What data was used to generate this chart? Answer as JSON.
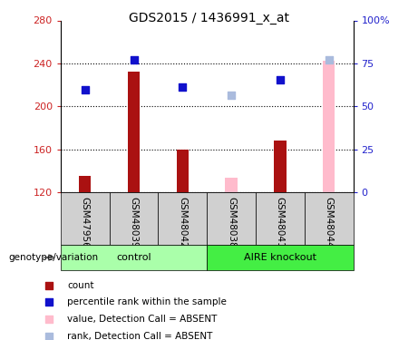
{
  "title": "GDS2015 / 1436991_x_at",
  "samples": [
    "GSM47956",
    "GSM48039",
    "GSM48042",
    "GSM48038",
    "GSM48041",
    "GSM48044"
  ],
  "bar_values": [
    135,
    232,
    160,
    133,
    168,
    242
  ],
  "bar_absent": [
    false,
    false,
    false,
    true,
    false,
    true
  ],
  "dot_values": [
    215,
    243,
    218,
    210,
    225,
    243
  ],
  "dot_absent": [
    false,
    false,
    false,
    true,
    false,
    true
  ],
  "ylim_left": [
    120,
    280
  ],
  "yticks_left": [
    120,
    160,
    200,
    240,
    280
  ],
  "ylim_right": [
    0,
    100
  ],
  "yticks_right": [
    0,
    25,
    50,
    75,
    100
  ],
  "bar_color_present": "#aa1111",
  "bar_color_absent": "#ffbbcc",
  "dot_color_present": "#1111cc",
  "dot_color_absent": "#aabbdd",
  "control_color": "#aaffaa",
  "aire_color": "#44ee44",
  "tick_color_left": "#cc2222",
  "tick_color_right": "#2222cc",
  "legend_items": [
    "count",
    "percentile rank within the sample",
    "value, Detection Call = ABSENT",
    "rank, Detection Call = ABSENT"
  ],
  "legend_colors": [
    "#aa1111",
    "#1111cc",
    "#ffbbcc",
    "#aabbdd"
  ],
  "bar_width": 0.25
}
